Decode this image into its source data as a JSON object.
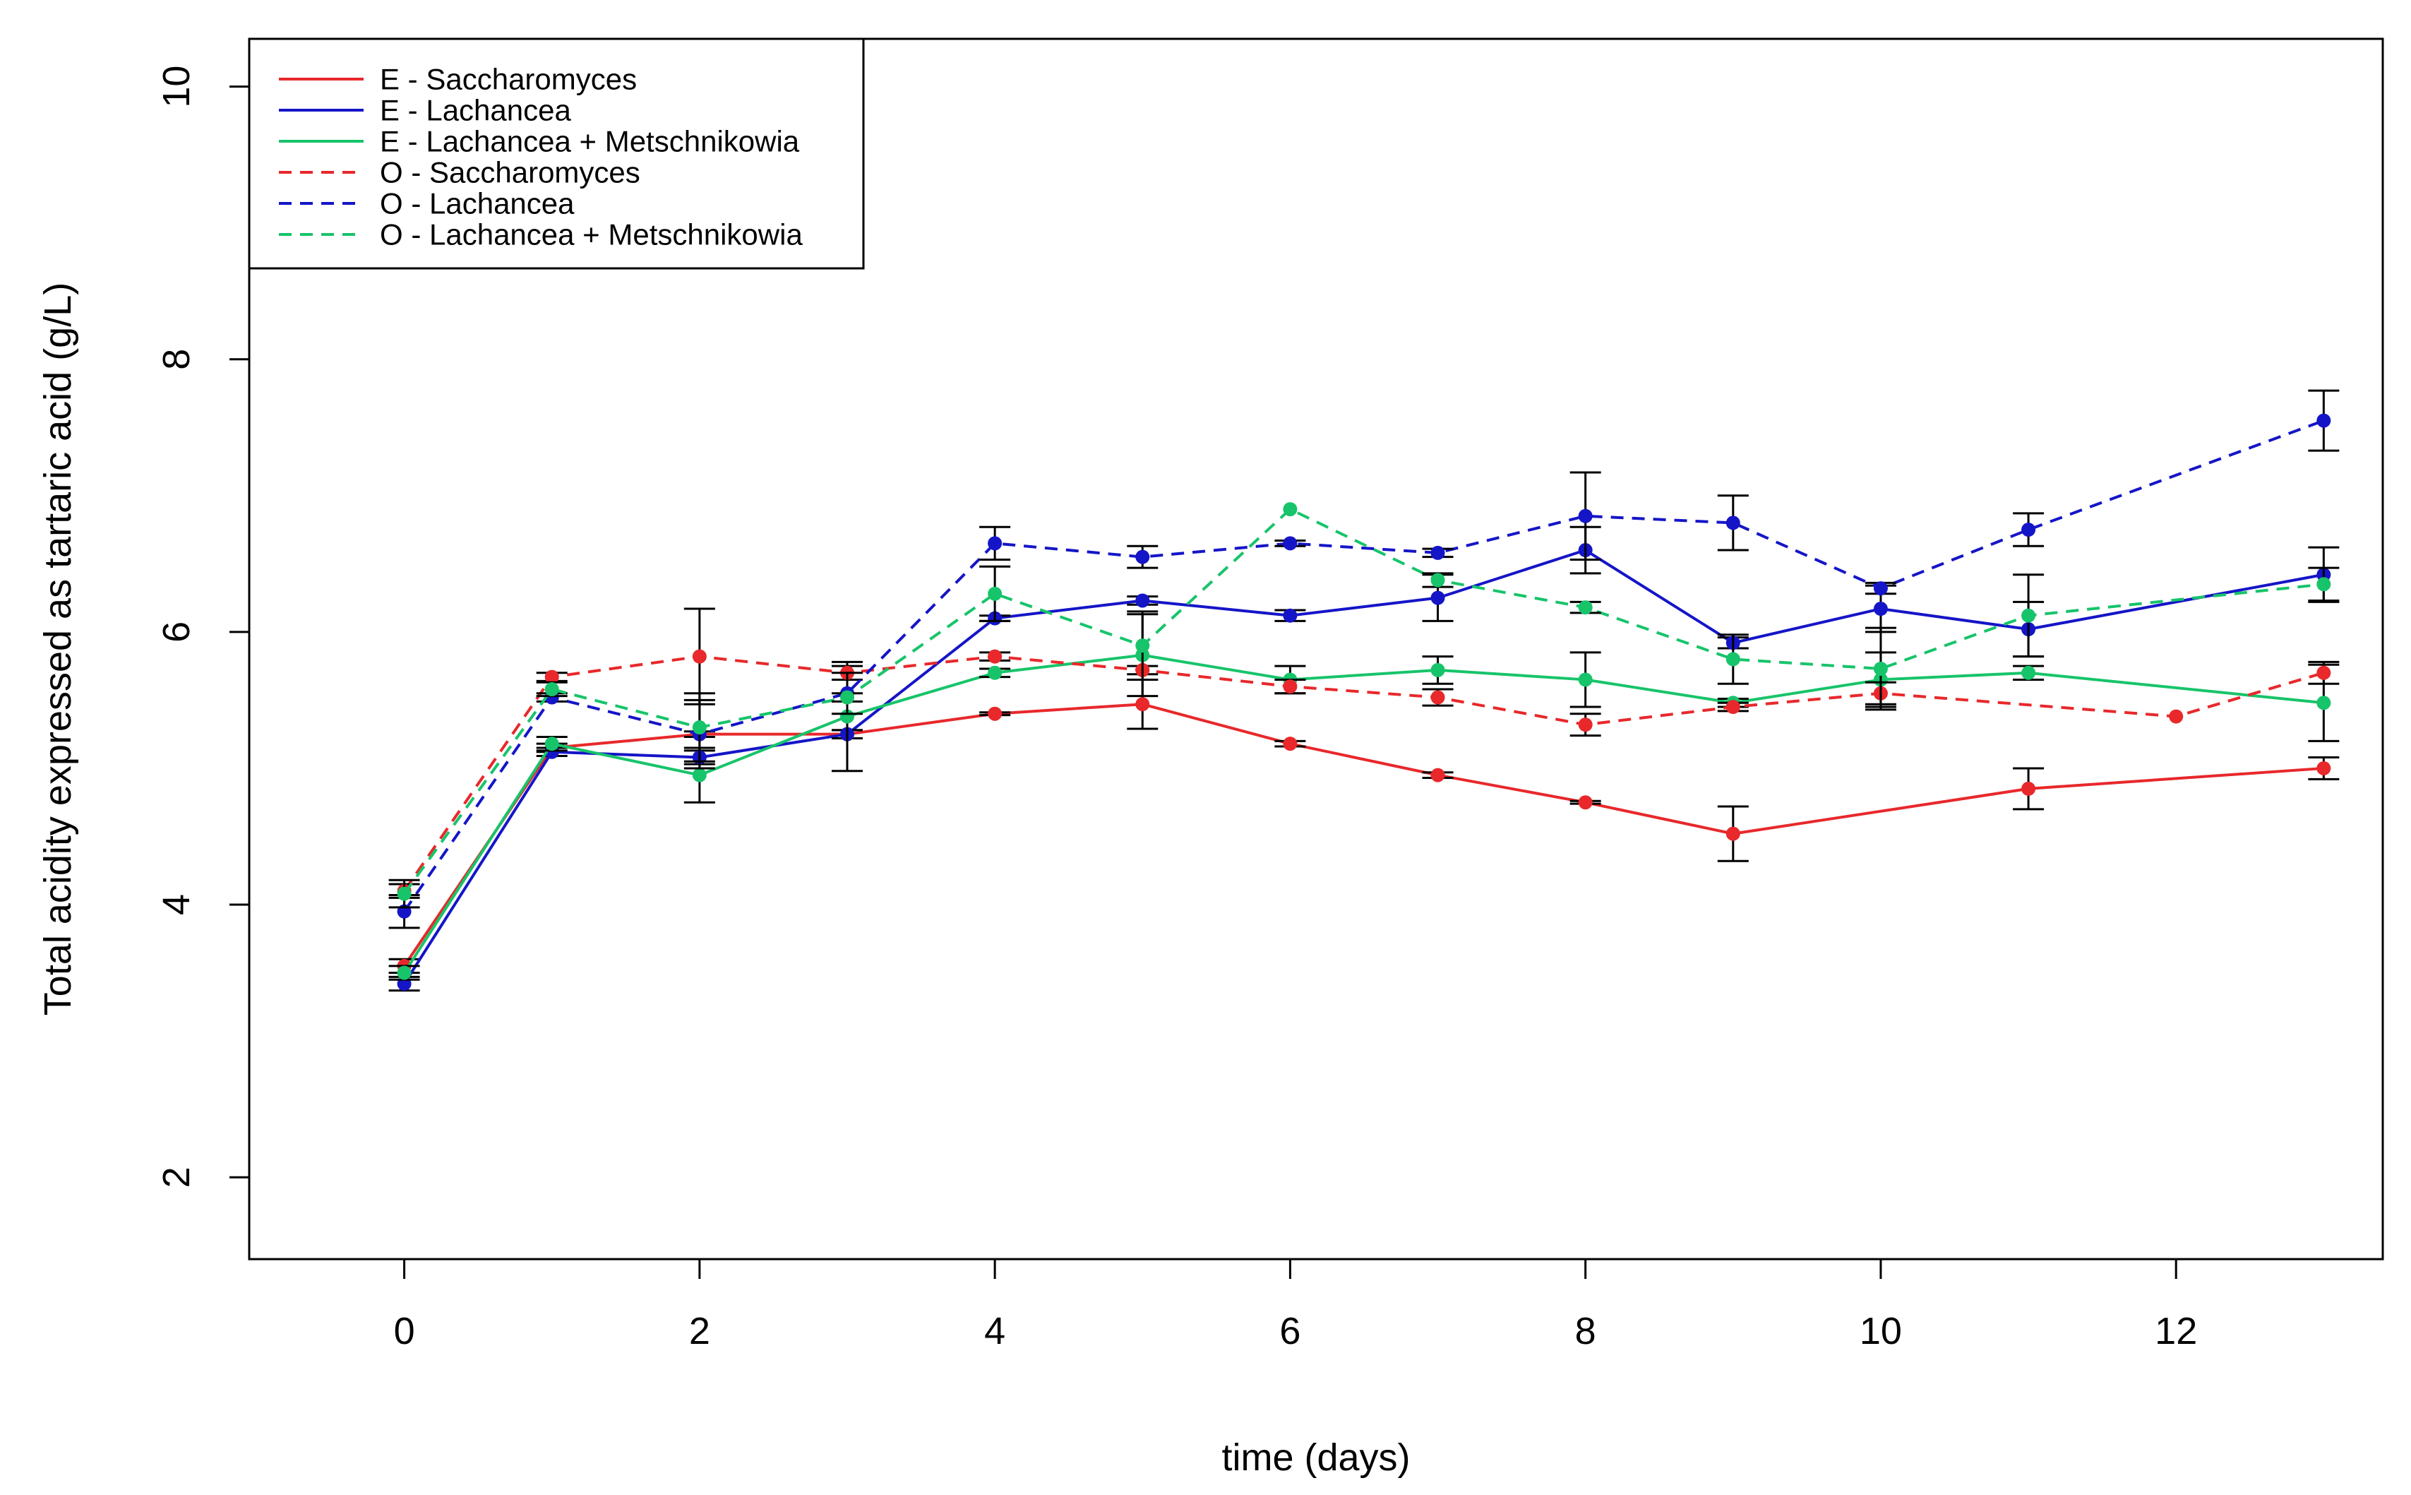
{
  "chart_data": {
    "type": "line",
    "title": "",
    "xlabel": "time (days)",
    "ylabel": "Total acidity expressed as tartaric acid (g/L)",
    "xlim": [
      -1.05,
      13.4
    ],
    "ylim": [
      1.4,
      10.35
    ],
    "xticks": [
      0,
      2,
      4,
      6,
      8,
      10,
      12
    ],
    "yticks": [
      2,
      4,
      6,
      8,
      10
    ],
    "grid": false,
    "legend_position": "top-left",
    "series": [
      {
        "name": "E - Saccharomyces",
        "color": "#e8282b",
        "dashed": false,
        "x": [
          0,
          1,
          2,
          3,
          4,
          5,
          6,
          7,
          8,
          9,
          11,
          13
        ],
        "y": [
          3.55,
          5.15,
          5.25,
          5.25,
          5.4,
          5.47,
          5.18,
          4.95,
          4.75,
          4.52,
          4.85,
          5.0
        ],
        "err": [
          0.05,
          0.03,
          0.02,
          0.03,
          0.01,
          0.18,
          0.02,
          0.02,
          0.01,
          0.2,
          0.15,
          0.08
        ]
      },
      {
        "name": "E - Lachancea",
        "color": "#1515c8",
        "dashed": false,
        "x": [
          0,
          1,
          2,
          3,
          4,
          5,
          6,
          7,
          8,
          9,
          10,
          11,
          13
        ],
        "y": [
          3.42,
          5.12,
          5.08,
          5.25,
          6.1,
          6.23,
          6.12,
          6.25,
          6.6,
          5.92,
          6.17,
          6.02,
          6.42
        ],
        "err": [
          0.05,
          0.03,
          0.05,
          0.03,
          0.02,
          0.03,
          0.04,
          0.17,
          0.17,
          0.04,
          0.17,
          0.2,
          0.2
        ]
      },
      {
        "name": "E - Lachancea + Metschnikowia",
        "color": "#17c46a",
        "dashed": false,
        "x": [
          0,
          1,
          2,
          3,
          4,
          5,
          6,
          7,
          8,
          9,
          10,
          11,
          13
        ],
        "y": [
          3.5,
          5.18,
          4.95,
          5.38,
          5.7,
          5.83,
          5.65,
          5.72,
          5.65,
          5.48,
          5.65,
          5.7,
          5.48
        ],
        "err": [
          0.05,
          0.05,
          0.2,
          0.4,
          0.03,
          0.3,
          0.1,
          0.1,
          0.2,
          0.03,
          0.2,
          0.05,
          0.28
        ]
      },
      {
        "name": "O - Saccharomyces",
        "color": "#e8282b",
        "dashed": true,
        "x": [
          0,
          1,
          2,
          3,
          4,
          5,
          6,
          7,
          8,
          9,
          10,
          12,
          13
        ],
        "y": [
          4.1,
          5.67,
          5.82,
          5.7,
          5.82,
          5.72,
          5.6,
          5.52,
          5.32,
          5.45,
          5.55,
          5.38,
          5.7
        ],
        "err": [
          0.05,
          0.03,
          0.35,
          0.05,
          0.03,
          0.03,
          0.05,
          0.06,
          0.08,
          0.03,
          0.08,
          0.0,
          0.08
        ]
      },
      {
        "name": "O - Lachancea",
        "color": "#1515c8",
        "dashed": true,
        "x": [
          0,
          1,
          2,
          3,
          4,
          5,
          6,
          7,
          8,
          9,
          10,
          11,
          13
        ],
        "y": [
          3.95,
          5.52,
          5.25,
          5.55,
          6.65,
          6.55,
          6.65,
          6.58,
          6.85,
          6.8,
          6.32,
          6.75,
          7.55
        ],
        "err": [
          0.12,
          0.03,
          0.25,
          0.15,
          0.12,
          0.08,
          0.02,
          0.03,
          0.32,
          0.2,
          0.04,
          0.12,
          0.22
        ]
      },
      {
        "name": "O - Lachancea + Metschnikowia",
        "color": "#17c46a",
        "dashed": true,
        "x": [
          0,
          1,
          2,
          3,
          4,
          5,
          6,
          7,
          8,
          9,
          10,
          11,
          13
        ],
        "y": [
          4.08,
          5.58,
          5.3,
          5.52,
          6.28,
          5.9,
          6.9,
          6.38,
          6.18,
          5.8,
          5.73,
          6.12,
          6.35
        ],
        "err": [
          0.1,
          0.05,
          0.25,
          0.03,
          0.2,
          0.25,
          0.0,
          0.05,
          0.04,
          0.18,
          0.3,
          0.3,
          0.12
        ]
      }
    ]
  }
}
